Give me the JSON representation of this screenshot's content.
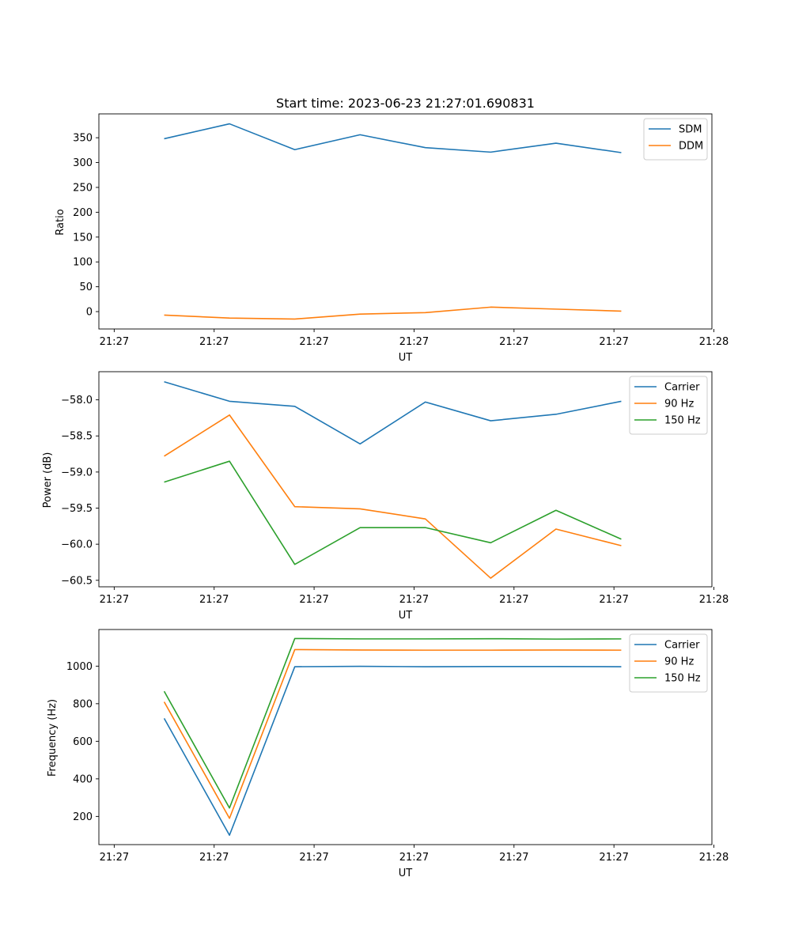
{
  "chart_data": [
    {
      "type": "line",
      "title": "Start time: 2023-06-23 21:27:01.690831",
      "xlabel": "UT",
      "ylabel": "Ratio",
      "xlim": [
        -0.23,
        8.97
      ],
      "x_ticks": [
        0,
        1.5,
        3,
        4.5,
        6,
        7.5,
        9
      ],
      "x_tick_labels": [
        "21:27",
        "21:27",
        "21:27",
        "21:27",
        "21:27",
        "21:27",
        "21:28"
      ],
      "ylim": [
        -35,
        398
      ],
      "y_ticks": [
        0,
        50,
        100,
        150,
        200,
        250,
        300,
        350
      ],
      "y_tick_labels": [
        "0",
        "50",
        "100",
        "150",
        "200",
        "250",
        "300",
        "350"
      ],
      "x": [
        0.75,
        1.73,
        2.71,
        3.69,
        4.67,
        5.65,
        6.63,
        7.61
      ],
      "legend_position": "top-right",
      "grid": false,
      "series": [
        {
          "name": "SDM",
          "color": "#1f77b4",
          "values": [
            348,
            378,
            326,
            356,
            330,
            321,
            339,
            320
          ]
        },
        {
          "name": "DDM",
          "color": "#ff7f0e",
          "values": [
            -7,
            -13,
            -15,
            -5,
            -2,
            9,
            5,
            1
          ]
        }
      ]
    },
    {
      "type": "line",
      "title": "",
      "xlabel": "UT",
      "ylabel": "Power (dB)",
      "xlim": [
        -0.23,
        8.97
      ],
      "x_ticks": [
        0,
        1.5,
        3,
        4.5,
        6,
        7.5,
        9
      ],
      "x_tick_labels": [
        "21:27",
        "21:27",
        "21:27",
        "21:27",
        "21:27",
        "21:27",
        "21:28"
      ],
      "ylim": [
        -60.59,
        -57.61
      ],
      "y_ticks": [
        -60.5,
        -60.0,
        -59.5,
        -59.0,
        -58.5,
        -58.0
      ],
      "y_tick_labels": [
        "−60.5",
        "−60.0",
        "−59.5",
        "−59.0",
        "−58.5",
        "−58.0"
      ],
      "x": [
        0.75,
        1.73,
        2.71,
        3.69,
        4.67,
        5.65,
        6.63,
        7.61
      ],
      "legend_position": "top-right",
      "grid": false,
      "series": [
        {
          "name": "Carrier",
          "color": "#1f77b4",
          "values": [
            -57.75,
            -58.02,
            -58.09,
            -58.61,
            -58.03,
            -58.29,
            -58.2,
            -58.02
          ]
        },
        {
          "name": "90 Hz",
          "color": "#ff7f0e",
          "values": [
            -58.78,
            -58.21,
            -59.48,
            -59.51,
            -59.65,
            -60.47,
            -59.79,
            -60.02
          ]
        },
        {
          "name": "150 Hz",
          "color": "#2ca02c",
          "values": [
            -59.14,
            -58.85,
            -60.28,
            -59.77,
            -59.77,
            -59.98,
            -59.53,
            -59.93
          ]
        }
      ]
    },
    {
      "type": "line",
      "title": "",
      "xlabel": "UT",
      "ylabel": "Frequency (Hz)",
      "xlim": [
        -0.23,
        8.97
      ],
      "x_ticks": [
        0,
        1.5,
        3,
        4.5,
        6,
        7.5,
        9
      ],
      "x_tick_labels": [
        "21:27",
        "21:27",
        "21:27",
        "21:27",
        "21:27",
        "21:27",
        "21:28"
      ],
      "ylim": [
        50,
        1195
      ],
      "y_ticks": [
        200,
        400,
        600,
        800,
        1000
      ],
      "y_tick_labels": [
        "200",
        "400",
        "600",
        "800",
        "1000"
      ],
      "x": [
        0.75,
        1.73,
        2.71,
        3.69,
        4.67,
        5.65,
        6.63,
        7.61
      ],
      "legend_position": "top-right",
      "grid": false,
      "series": [
        {
          "name": "Carrier",
          "color": "#1f77b4",
          "values": [
            722,
            100,
            997,
            999,
            997,
            998,
            998,
            997
          ]
        },
        {
          "name": "90 Hz",
          "color": "#ff7f0e",
          "values": [
            810,
            190,
            1088,
            1086,
            1085,
            1085,
            1086,
            1085
          ]
        },
        {
          "name": "150 Hz",
          "color": "#2ca02c",
          "values": [
            866,
            245,
            1147,
            1145,
            1145,
            1146,
            1144,
            1145
          ]
        }
      ]
    }
  ]
}
